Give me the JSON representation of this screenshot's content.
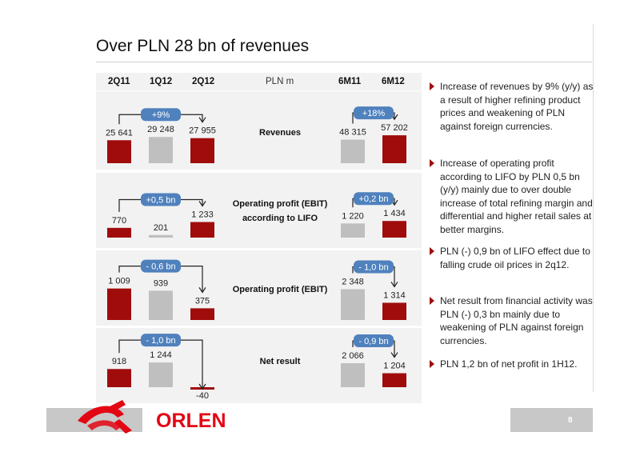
{
  "title": "Over PLN 28 bn of revenues",
  "header": {
    "q1": "2Q11",
    "q2": "1Q12",
    "q3": "2Q12",
    "unit": "PLN m",
    "h1": "6M11",
    "h2": "6M12"
  },
  "colors": {
    "red": "#a00c0c",
    "grey": "#bfbfbf",
    "accent": "#4f81bd",
    "panel": "#f2f2f2"
  },
  "chart_data": [
    {
      "type": "bar",
      "title": "Revenues",
      "quarterly": {
        "categories": [
          "2Q11",
          "1Q12",
          "2Q12"
        ],
        "values": [
          25641,
          29248,
          27955
        ],
        "value_labels": [
          "25 641",
          "29 248",
          "27 955"
        ],
        "change_label": "+9%"
      },
      "half_year": {
        "categories": [
          "6M11",
          "6M12"
        ],
        "values": [
          48315,
          57202
        ],
        "value_labels": [
          "48 315",
          "57 202"
        ],
        "change_label": "+18%"
      }
    },
    {
      "type": "bar",
      "title": "Operating profit (EBIT) according to LIFO",
      "quarterly": {
        "categories": [
          "2Q11",
          "1Q12",
          "2Q12"
        ],
        "values": [
          770,
          201,
          1233
        ],
        "value_labels": [
          "770",
          "201",
          "1 233"
        ],
        "change_label": "+0,5 bn"
      },
      "half_year": {
        "categories": [
          "6M11",
          "6M12"
        ],
        "values": [
          1220,
          1434
        ],
        "value_labels": [
          "1 220",
          "1 434"
        ],
        "change_label": "+0,2 bn"
      }
    },
    {
      "type": "bar",
      "title": "Operating profit (EBIT)",
      "quarterly": {
        "categories": [
          "2Q11",
          "1Q12",
          "2Q12"
        ],
        "values": [
          1009,
          939,
          375
        ],
        "value_labels": [
          "1 009",
          "939",
          "375"
        ],
        "change_label": "- 0,6 bn"
      },
      "half_year": {
        "categories": [
          "6M11",
          "6M12"
        ],
        "values": [
          2348,
          1314
        ],
        "value_labels": [
          "2 348",
          "1 314"
        ],
        "change_label": "- 1,0 bn"
      }
    },
    {
      "type": "bar",
      "title": "Net result",
      "quarterly": {
        "categories": [
          "2Q11",
          "1Q12",
          "2Q12"
        ],
        "values": [
          918,
          1244,
          -40
        ],
        "value_labels": [
          "918",
          "1 244",
          "-40"
        ],
        "change_label": "- 1,0 bn"
      },
      "half_year": {
        "categories": [
          "6M11",
          "6M12"
        ],
        "values": [
          2066,
          1204
        ],
        "value_labels": [
          "2 066",
          "1 204"
        ],
        "change_label": "- 0,9 bn"
      }
    }
  ],
  "bullets": [
    "Increase of revenues by 9% (y/y) as a result of higher refining product prices and weakening of PLN against foreign currencies.",
    "Increase of operating profit according to LIFO by PLN 0,5 bn (y/y) mainly due to over double increase of total refining margin and differential and higher retail sales at better margins.",
    "PLN (-) 0,9 bn of LIFO effect due to falling crude oil prices in 2q12.",
    "Net result from financial activity was PLN (-) 0,3 bn mainly due to weakening of PLN against foreign currencies.",
    "PLN 1,2 bn of net profit in 1H12."
  ],
  "footer": {
    "logo_text": "ORLEN",
    "page_number": "8"
  }
}
